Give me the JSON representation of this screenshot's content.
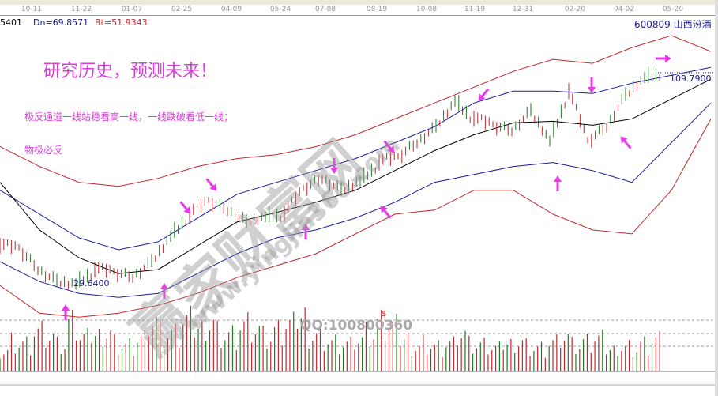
{
  "header": {
    "dates": [
      "10-11",
      "11-22",
      "01-07",
      "02-25",
      "04-09",
      "05-24",
      "07-08",
      "08-19",
      "10-08",
      "11-19",
      "12-31",
      "02-20",
      "04-02",
      "05-20"
    ],
    "up_partial": "5401",
    "dn": "Dn=69.8571",
    "bt": "Bt=51.9343",
    "stock": "600809  山西汾酒"
  },
  "annotations": {
    "title": "研究历史，预测未来！",
    "line1": "极反通道一线站稳看高一线，一线跌破看低一线；",
    "line2": "物极必反",
    "low_label": "29.6400",
    "high_label": "109.7900",
    "qq": "QQ:100800360",
    "dollar": "$"
  },
  "watermark": {
    "logo": "赢家财富网",
    "url": "www.yingjia360.com"
  },
  "colors": {
    "outer": "#c0282d",
    "inner": "#1c1c9c",
    "mid": "#000000",
    "up": "#c0282d",
    "down": "#1f7a1f",
    "arrow": "#e63be6"
  },
  "chart_data": {
    "type": "line",
    "title": "",
    "ylim": [
      17.7,
      125.3
    ],
    "grid": false,
    "x_samples": 19,
    "series": [
      {
        "key": "red_upper",
        "values": [
          81.8,
          74.3,
          68.3,
          66.8,
          69.8,
          74.3,
          77.3,
          78.8,
          81.8,
          86.3,
          92.3,
          98.3,
          104.3,
          110.3,
          114.8,
          113.3,
          119.3,
          123.8,
          117.8
        ]
      },
      {
        "key": "blue_upper",
        "values": [
          65.3,
          56.3,
          47.3,
          42.8,
          45.8,
          54.8,
          63.8,
          68.3,
          72.8,
          77.3,
          83.3,
          89.3,
          98.3,
          102.8,
          102.8,
          101.9,
          105.8,
          108.8,
          111.8
        ]
      },
      {
        "key": "middle",
        "values": [
          68.3,
          50.3,
          39.8,
          33.8,
          35.3,
          44.3,
          53.3,
          56.9,
          60.8,
          65.3,
          72.8,
          80.3,
          86.3,
          90.8,
          91.4,
          89.9,
          92.3,
          99.8,
          107.3
        ]
      },
      {
        "key": "blue_lower",
        "values": [
          38.3,
          30.8,
          26.3,
          24.8,
          26.3,
          33.8,
          41.3,
          47.3,
          50.3,
          54.8,
          60.8,
          68.3,
          71.3,
          74.3,
          75.8,
          72.8,
          68.3,
          83.3,
          98.3
        ]
      },
      {
        "key": "red_lower",
        "values": [
          29.3,
          18.8,
          17.3,
          18.8,
          21.8,
          26.3,
          32.3,
          36.8,
          41.3,
          48.8,
          56.3,
          57.8,
          65.3,
          65.3,
          56.3,
          50.3,
          48.8,
          65.3,
          92.3
        ]
      }
    ],
    "price": [
      44.3,
      42.8,
      35.3,
      30.8,
      30.8,
      35.3,
      33.8,
      32.3,
      38.3,
      48.8,
      56.3,
      60.8,
      57.8,
      53.3,
      56.3,
      56.3,
      65.3,
      69.8,
      65.3,
      69.8,
      75.8,
      77.3,
      83.3,
      89.3,
      99.8,
      92.3,
      89.3,
      87.8,
      95.3,
      84.8,
      102.8,
      83.3,
      89.3,
      101.3,
      108.8,
      109.79
    ],
    "volume": [
      30,
      42,
      38,
      55,
      48,
      35,
      62,
      44,
      50,
      58,
      40,
      36,
      45,
      70,
      52,
      48,
      66,
      60,
      72,
      55,
      50,
      64,
      58,
      46,
      52,
      60,
      75,
      54,
      48,
      40,
      38,
      44,
      50,
      62,
      58,
      45,
      36,
      40,
      34,
      38,
      52,
      36,
      34,
      30,
      38,
      44,
      36,
      32,
      40,
      48,
      35,
      38,
      42,
      30,
      36,
      34,
      38,
      44
    ]
  }
}
